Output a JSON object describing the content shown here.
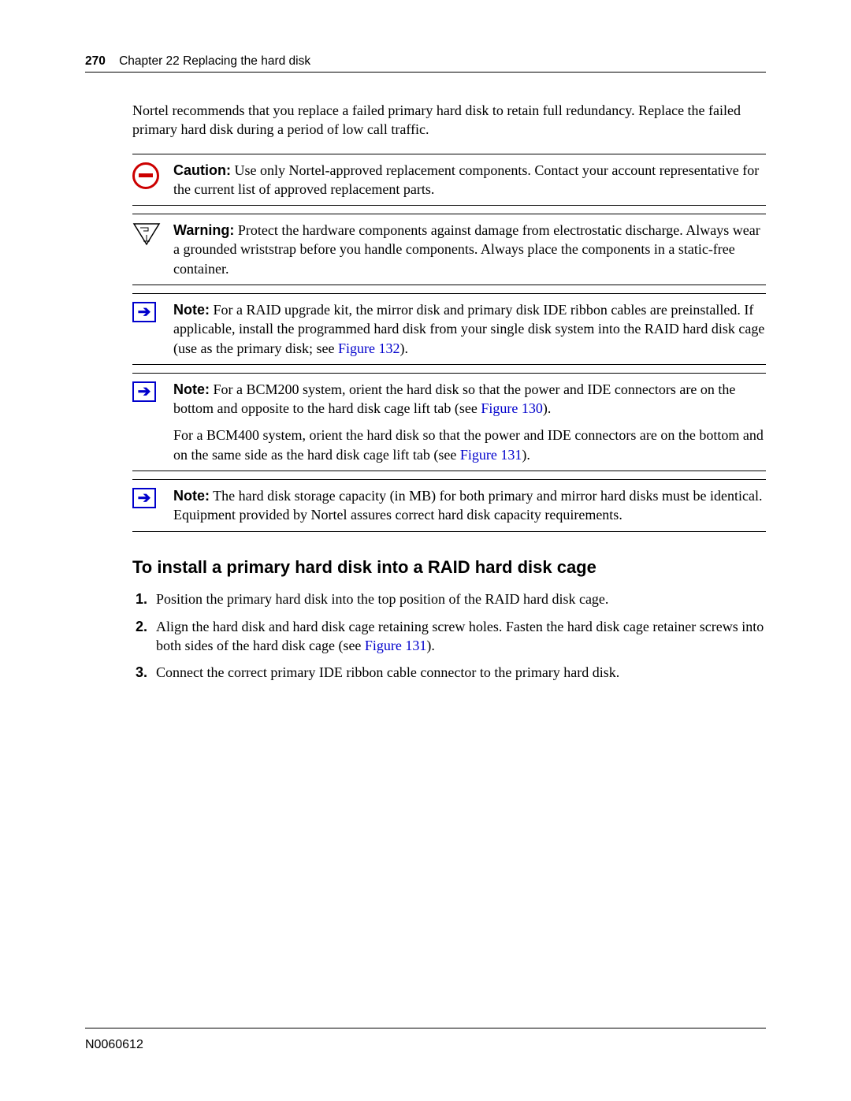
{
  "header": {
    "page_number": "270",
    "chapter": "Chapter 22  Replacing the hard disk"
  },
  "intro": "Nortel recommends that you replace a failed primary hard disk to retain full redundancy. Replace the failed primary hard disk during a period of low call traffic.",
  "admonitions": [
    {
      "type": "caution",
      "icon": "no-entry",
      "label": "Caution:",
      "paragraphs": [
        {
          "runs": [
            {
              "text": " Use only Nortel-approved replacement components. Contact your account representative for the current list of approved replacement parts."
            }
          ]
        }
      ]
    },
    {
      "type": "warning",
      "icon": "esd",
      "label": "Warning:",
      "paragraphs": [
        {
          "runs": [
            {
              "text": " Protect the hardware components against damage from electrostatic discharge. Always wear a grounded wriststrap before you handle components. Always place the components in a static-free container."
            }
          ]
        }
      ]
    },
    {
      "type": "note",
      "icon": "note",
      "label": "Note:",
      "paragraphs": [
        {
          "runs": [
            {
              "text": " For a RAID upgrade kit, the mirror disk and primary disk IDE ribbon cables are preinstalled. If applicable, install the programmed hard disk from your single disk system into the RAID hard disk cage (use as the primary disk; see "
            },
            {
              "text": "Figure 132",
              "link": true
            },
            {
              "text": ")."
            }
          ]
        }
      ]
    },
    {
      "type": "note",
      "icon": "note",
      "label": "Note:",
      "paragraphs": [
        {
          "runs": [
            {
              "text": " For a BCM200 system, orient the hard disk so that the power and IDE connectors are on the bottom and opposite to the hard disk cage lift tab (see "
            },
            {
              "text": "Figure 130",
              "link": true
            },
            {
              "text": ")."
            }
          ]
        },
        {
          "runs": [
            {
              "text": "For a BCM400 system, orient the hard disk so that the power and IDE connectors are on the bottom and on the same side as the hard disk cage lift tab (see "
            },
            {
              "text": "Figure 131",
              "link": true
            },
            {
              "text": ")."
            }
          ]
        }
      ]
    },
    {
      "type": "note",
      "icon": "note",
      "label": "Note:",
      "paragraphs": [
        {
          "runs": [
            {
              "text": " The hard disk storage capacity (in MB) for both primary and mirror hard disks must be identical. Equipment provided by Nortel assures correct hard disk capacity requirements."
            }
          ]
        }
      ]
    }
  ],
  "section_heading": "To install a primary hard disk into a RAID hard disk cage",
  "steps": [
    {
      "runs": [
        {
          "text": "Position the primary hard disk into the top position of the RAID hard disk cage."
        }
      ]
    },
    {
      "runs": [
        {
          "text": "Align the hard disk and hard disk cage retaining screw holes. Fasten the hard disk cage retainer screws into both sides of the hard disk cage (see "
        },
        {
          "text": "Figure 131",
          "link": true
        },
        {
          "text": ")."
        }
      ]
    },
    {
      "runs": [
        {
          "text": "Connect the correct primary IDE ribbon cable connector to the primary hard disk."
        }
      ]
    }
  ],
  "footer": {
    "doc_id": "N0060612"
  },
  "colors": {
    "link": "#0000cc",
    "caution_border": "#c00",
    "text": "#000",
    "background": "#fff"
  }
}
